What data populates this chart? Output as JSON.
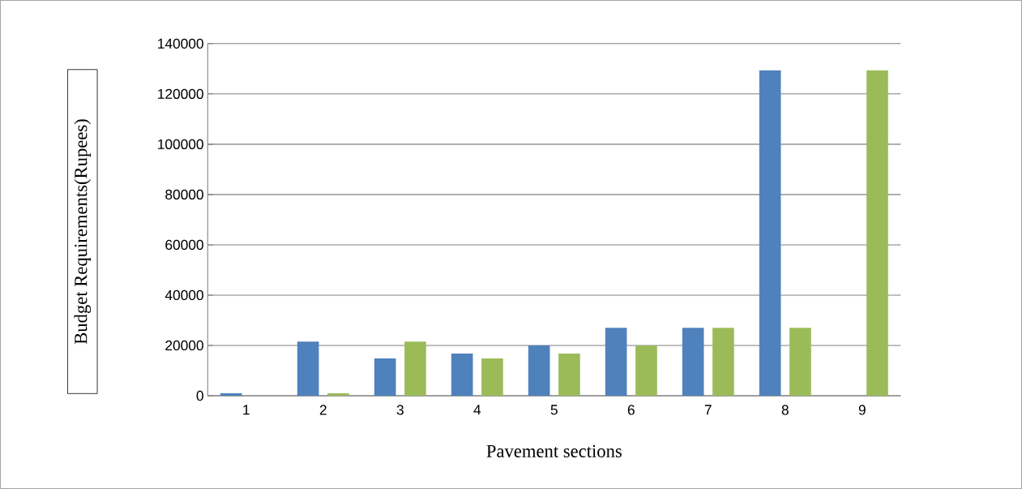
{
  "chart_data": {
    "type": "bar",
    "xlabel": "Pavement sections",
    "ylabel": "Budget Requirements(Rupees)",
    "categories": [
      "1",
      "2",
      "3",
      "4",
      "5",
      "6",
      "7",
      "8",
      "9"
    ],
    "series": [
      {
        "color": "#4f81bd",
        "values": [
          1000,
          21500,
          14800,
          16800,
          20000,
          27000,
          27000,
          129400,
          null
        ]
      },
      {
        "color": "#9bbb59",
        "values": [
          null,
          1000,
          21500,
          14800,
          16800,
          20000,
          27000,
          27000,
          129400
        ]
      }
    ],
    "ylim": [
      0,
      140000
    ],
    "yticks": [
      0,
      20000,
      40000,
      60000,
      80000,
      100000,
      120000,
      140000
    ],
    "grid": "y"
  }
}
